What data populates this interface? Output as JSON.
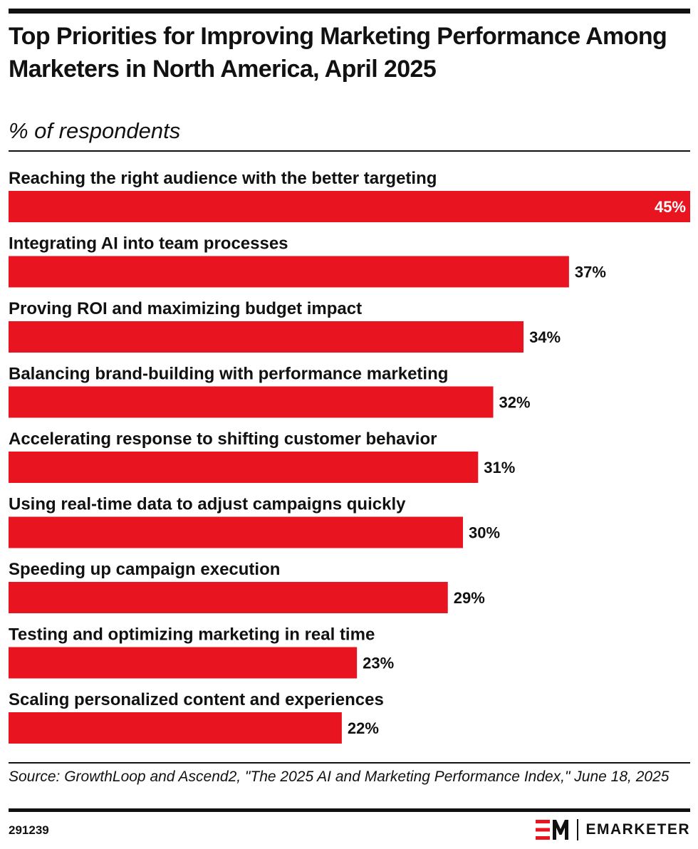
{
  "header": {
    "title": "Top Priorities for Improving Marketing Performance Among Marketers in North America, April 2025",
    "subtitle": "% of respondents"
  },
  "footer": {
    "source": "Source: GrowthLoop and Ascend2, \"The 2025 AI and Marketing Performance Index,\" June 18, 2025",
    "chart_id": "291239",
    "brand": "EMARKETER",
    "logo_mark": "EM"
  },
  "colors": {
    "bar": "#e8141f",
    "title": "#e8141f",
    "text": "#111111",
    "value_inside": "#ffffff"
  },
  "chart_data": {
    "type": "bar",
    "orientation": "horizontal",
    "title": "Top Priorities for Improving Marketing Performance Among Marketers in North America, April 2025",
    "subtitle": "% of respondents",
    "unit": "%",
    "categories": [
      "Reaching the right audience with the better targeting",
      "Integrating AI into team processes",
      "Proving ROI and maximizing budget impact",
      "Balancing brand-building with performance marketing",
      "Accelerating response to shifting customer behavior",
      "Using real-time data to adjust campaigns quickly",
      "Speeding up campaign execution",
      "Testing and optimizing marketing in real time",
      "Scaling personalized content and experiences"
    ],
    "values": [
      45,
      37,
      34,
      32,
      31,
      30,
      29,
      23,
      22
    ],
    "value_labels": [
      "45%",
      "37%",
      "34%",
      "32%",
      "31%",
      "30%",
      "29%",
      "23%",
      "22%"
    ],
    "xlim": [
      0,
      45
    ],
    "grid": false,
    "legend": "none"
  }
}
